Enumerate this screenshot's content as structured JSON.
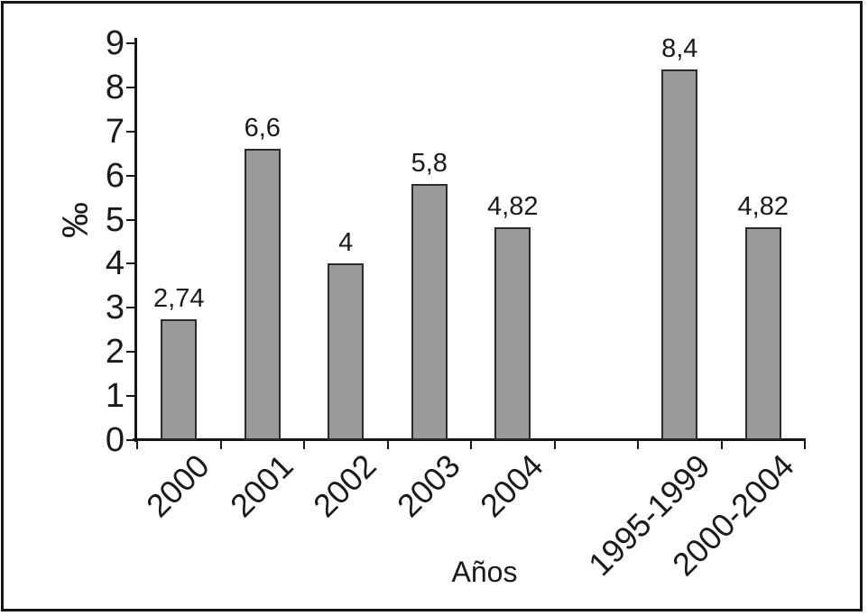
{
  "chart_data": {
    "type": "bar",
    "title": "",
    "xlabel": "Años",
    "ylabel": "‰",
    "ylim": [
      0,
      9
    ],
    "ytick_step": 1,
    "ytick_labels": [
      "0",
      "1",
      "2",
      "3",
      "4",
      "5",
      "6",
      "7",
      "8",
      "9"
    ],
    "categories": [
      "2000",
      "2001",
      "2002",
      "2003",
      "2004",
      "",
      "1995-1999",
      "2000-2004"
    ],
    "values": [
      2.74,
      6.6,
      4,
      5.8,
      4.82,
      null,
      8.4,
      4.82
    ],
    "value_labels": [
      "2,74",
      "6,6",
      "4",
      "5,8",
      "4,82",
      "",
      "8,4",
      "4,82"
    ],
    "grid": false,
    "legend": "none",
    "bar_fill_color": "#9a9a9a",
    "bar_border_color": "#2b2b2b",
    "axis_color": "#161616",
    "text_color": "#1a1a1a",
    "background_color": "#ffffff"
  }
}
